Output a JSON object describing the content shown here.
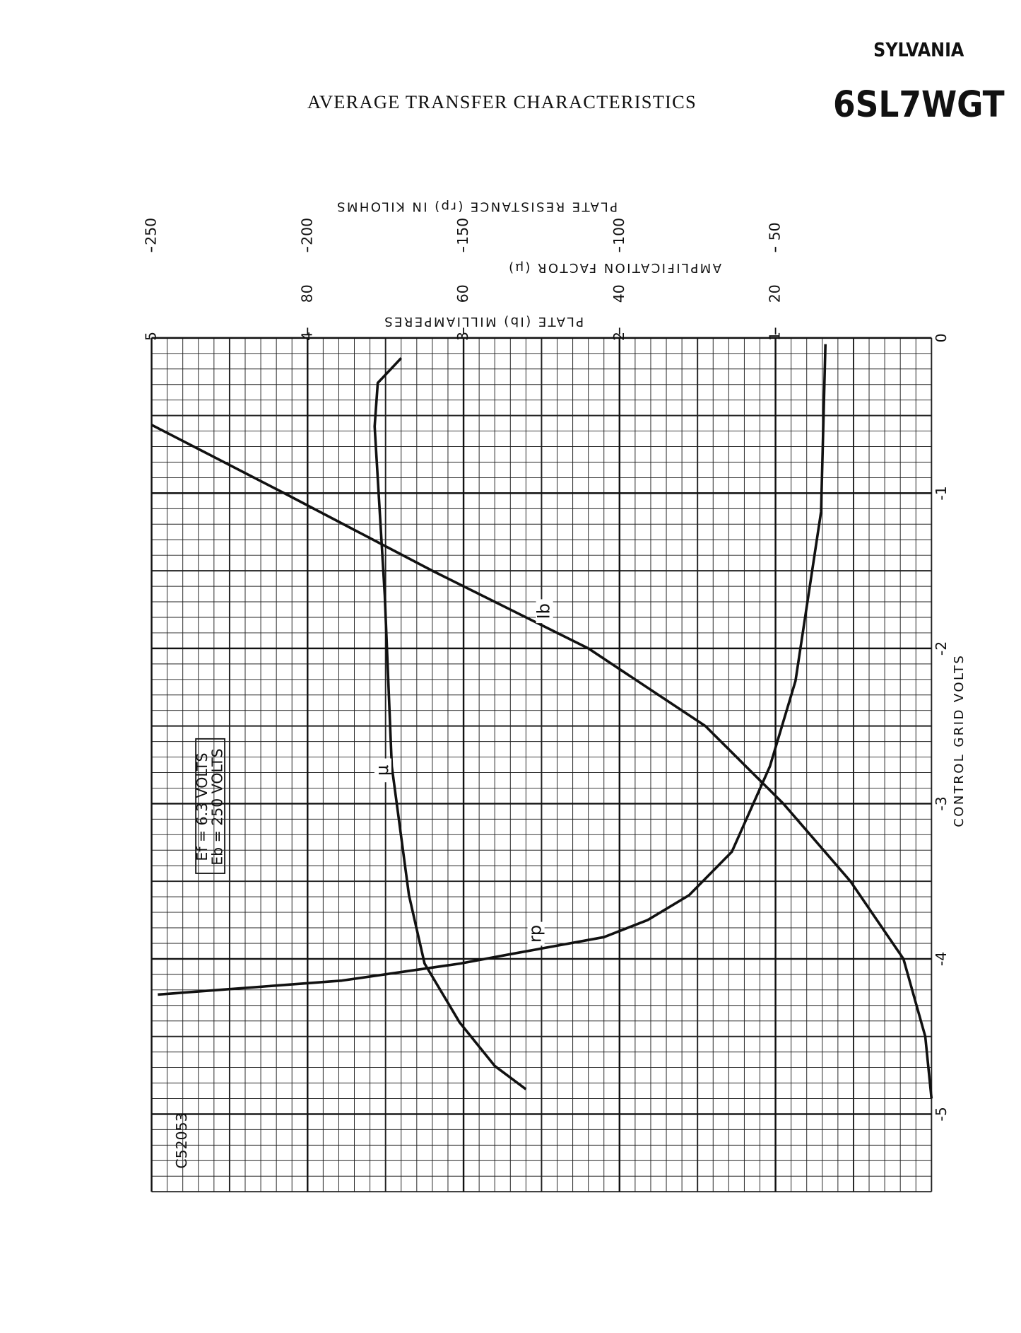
{
  "brand": "SYLVANIA",
  "model": "6SL7WGT",
  "chart_data": {
    "type": "line",
    "title": "AVERAGE TRANSFER CHARACTERISTICS",
    "xlabel": "CONTROL GRID VOLTS",
    "ylabel": "PLATE (Ib) MILLIAMPERES",
    "y2label": "AMPLIFICATION FACTOR (μ)",
    "y3label": "PLATE RESISTANCE (rp) IN KILOHMS",
    "xlim": [
      0,
      -5.5
    ],
    "xticks": [
      0,
      -1,
      -2,
      -3,
      -4,
      -5
    ],
    "ylim": [
      0,
      5
    ],
    "yticks": [
      1,
      2,
      3,
      4,
      5
    ],
    "y2lim": [
      0,
      100
    ],
    "y2ticks": [
      20,
      40,
      60,
      80
    ],
    "y3lim": [
      0,
      250
    ],
    "y3ticks": [
      50,
      100,
      150,
      200,
      250
    ],
    "grid": true,
    "annotations": [
      "Ef = 6.3 VOLTS",
      "Eb = 250 VOLTS",
      "C52053"
    ],
    "series": [
      {
        "name": "Ib",
        "color": "#111111",
        "axis": "y",
        "x": [
          -0.56,
          -1,
          -1.5,
          -2,
          -2.5,
          -3,
          -3.5,
          -4,
          -4.5,
          -4.9
        ],
        "values": [
          5,
          4.15,
          3.2,
          2.2,
          1.45,
          0.95,
          0.52,
          0.18,
          0.04,
          0
        ]
      },
      {
        "name": "μ",
        "color": "#111111",
        "axis": "y2",
        "x": [
          -0.13,
          -0.29,
          -0.57,
          -1.66,
          -2.76,
          -3.59,
          -4.03,
          -4.41,
          -4.69,
          -4.84
        ],
        "values": [
          68,
          71,
          71.4,
          70.1,
          69.2,
          67,
          65,
          60.5,
          56,
          52
        ]
      },
      {
        "name": "rp",
        "color": "#111111",
        "axis": "y3",
        "x": [
          -0.04,
          -1.12,
          -2.21,
          -2.76,
          -3.31,
          -3.59,
          -3.75,
          -3.86,
          -3.97,
          -4.03,
          -4.14,
          -4.23
        ],
        "values": [
          34,
          35.4,
          43.6,
          51.8,
          64,
          77.7,
          91,
          105,
          135,
          151,
          189,
          248
        ]
      }
    ]
  }
}
